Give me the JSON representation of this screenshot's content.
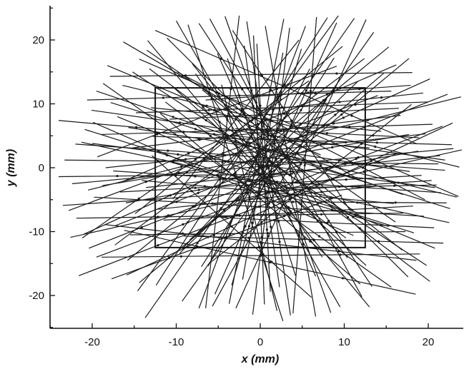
{
  "chart_data": {
    "type": "scatter",
    "title": "",
    "xlabel": "x (mm)",
    "ylabel": "y (mm)",
    "xlim": [
      -25,
      25
    ],
    "ylim": [
      -25,
      25
    ],
    "xticks": [
      -20,
      -10,
      0,
      10,
      20
    ],
    "yticks": [
      -20,
      -10,
      0,
      10,
      20
    ],
    "tick_labels_x": [
      "-20",
      "-10",
      "0",
      "10",
      "20"
    ],
    "tick_labels_y": [
      "-20",
      "-10",
      "0",
      "10",
      "20"
    ],
    "grid": false,
    "legend": "none",
    "frame_rect": {
      "x0": -12.5,
      "x1": 12.5,
      "y0": -12.5,
      "y1": 12.5
    },
    "line_color": "#1a1a1a",
    "tracks": [
      [
        [
          -24.0,
          7.4
        ],
        [
          13.0,
          3.1
        ]
      ],
      [
        [
          -23.5,
          -5.9
        ],
        [
          20.4,
          -2.0
        ]
      ],
      [
        [
          -22.6,
          -10.9
        ],
        [
          24.0,
          2.8
        ]
      ],
      [
        [
          -21.6,
          -16.9
        ],
        [
          16.1,
          2.1
        ]
      ],
      [
        [
          -22.0,
          3.7
        ],
        [
          22.0,
          -0.4
        ]
      ],
      [
        [
          -14.4,
          17.0
        ],
        [
          23.6,
          -4.5
        ]
      ],
      [
        [
          -20.5,
          -3.5
        ],
        [
          23.9,
          11.1
        ]
      ],
      [
        [
          -22.8,
          -6.7
        ],
        [
          14.0,
          11.3
        ]
      ],
      [
        [
          -19.4,
          1.7
        ],
        [
          9.1,
          15.9
        ]
      ],
      [
        [
          -21.2,
          -11.0
        ],
        [
          5.8,
          13.6
        ]
      ],
      [
        [
          -13.5,
          18.4
        ],
        [
          16.1,
          -8.5
        ]
      ],
      [
        [
          -18.8,
          -2.8
        ],
        [
          17.7,
          5.2
        ]
      ],
      [
        [
          -19.9,
          7.1
        ],
        [
          11.1,
          -10.6
        ]
      ],
      [
        [
          -17.3,
          -12.1
        ],
        [
          12.4,
          17.1
        ]
      ],
      [
        [
          -21.3,
          4.0
        ],
        [
          22.5,
          -8.6
        ]
      ],
      [
        [
          -18.5,
          -8.9
        ],
        [
          18.6,
          -14.5
        ]
      ],
      [
        [
          -16.4,
          12.9
        ],
        [
          23.7,
          0.1
        ]
      ],
      [
        [
          -19.8,
          -4.6
        ],
        [
          19.5,
          -7.6
        ]
      ],
      [
        [
          -15.9,
          -16.8
        ],
        [
          22.9,
          7.0
        ]
      ],
      [
        [
          -20.1,
          9.0
        ],
        [
          22.0,
          1.2
        ]
      ],
      [
        [
          -18.4,
          0.0
        ],
        [
          19.7,
          5.3
        ]
      ],
      [
        [
          -17.0,
          8.0
        ],
        [
          20.8,
          -12.6
        ]
      ],
      [
        [
          -16.2,
          -9.8
        ],
        [
          18.5,
          -19.8
        ]
      ],
      [
        [
          -19.5,
          12.0
        ],
        [
          17.0,
          -4.2
        ]
      ],
      [
        [
          -12.5,
          21.5
        ],
        [
          18.7,
          3.7
        ]
      ],
      [
        [
          -14.6,
          -19.3
        ],
        [
          9.3,
          23.8
        ]
      ],
      [
        [
          -10.0,
          23.0
        ],
        [
          9.5,
          -21.8
        ]
      ],
      [
        [
          -7.3,
          22.6
        ],
        [
          13.3,
          -18.6
        ]
      ],
      [
        [
          -4.2,
          23.7
        ],
        [
          8.4,
          -22.7
        ]
      ],
      [
        [
          -1.6,
          22.9
        ],
        [
          3.6,
          -23.1
        ]
      ],
      [
        [
          2.8,
          23.3
        ],
        [
          -3.7,
          -21.3
        ]
      ],
      [
        [
          5.4,
          22.2
        ],
        [
          -7.3,
          -22.0
        ]
      ],
      [
        [
          8.0,
          23.5
        ],
        [
          -12.4,
          -18.4
        ]
      ],
      [
        [
          11.2,
          23.4
        ],
        [
          -13.7,
          -23.5
        ]
      ],
      [
        [
          13.5,
          21.2
        ],
        [
          -9.3,
          -20.9
        ]
      ],
      [
        [
          -8.6,
          22.4
        ],
        [
          2.7,
          -24.0
        ]
      ],
      [
        [
          -6.0,
          23.3
        ],
        [
          12.1,
          -20.2
        ]
      ],
      [
        [
          -2.5,
          23.8
        ],
        [
          -6.5,
          -22.0
        ]
      ],
      [
        [
          0.6,
          22.2
        ],
        [
          6.6,
          -23.3
        ]
      ],
      [
        [
          3.5,
          21.9
        ],
        [
          -0.9,
          -23.0
        ]
      ],
      [
        [
          6.7,
          23.6
        ],
        [
          3.9,
          -22.8
        ]
      ],
      [
        [
          9.1,
          22.7
        ],
        [
          -5.4,
          -19.8
        ]
      ],
      [
        [
          12.6,
          23.2
        ],
        [
          -2.9,
          -22.0
        ]
      ],
      [
        [
          -11.1,
          20.3
        ],
        [
          17.6,
          -17.1
        ]
      ],
      [
        [
          -13.2,
          15.5
        ],
        [
          20.2,
          -17.8
        ]
      ],
      [
        [
          15.3,
          18.9
        ],
        [
          -15.8,
          -14.5
        ]
      ],
      [
        [
          17.7,
          17.1
        ],
        [
          -14.4,
          -18.0
        ]
      ],
      [
        [
          20.2,
          13.9
        ],
        [
          -21.0,
          -10.4
        ]
      ],
      [
        [
          22.3,
          11.5
        ],
        [
          -17.3,
          -9.1
        ]
      ],
      [
        [
          21.7,
          6.5
        ],
        [
          -19.5,
          -14.0
        ]
      ],
      [
        [
          23.0,
          3.0
        ],
        [
          -22.4,
          -2.5
        ]
      ],
      [
        [
          20.8,
          -3.1
        ],
        [
          -20.0,
          3.8
        ]
      ],
      [
        [
          22.6,
          -6.4
        ],
        [
          -17.8,
          10.2
        ]
      ],
      [
        [
          18.3,
          -10.2
        ],
        [
          -20.9,
          6.0
        ]
      ],
      [
        [
          19.8,
          -15.3
        ],
        [
          -15.2,
          15.0
        ]
      ],
      [
        [
          15.6,
          -18.7
        ],
        [
          -18.7,
          13.2
        ]
      ],
      [
        [
          13.0,
          -21.8
        ],
        [
          -13.4,
          19.9
        ]
      ],
      [
        [
          16.2,
          16.1
        ],
        [
          -16.8,
          -2.4
        ]
      ],
      [
        [
          -0.8,
          20.7
        ],
        [
          0.5,
          -21.4
        ]
      ],
      [
        [
          -15.7,
          6.3
        ],
        [
          17.8,
          -0.6
        ]
      ],
      [
        [
          -17.5,
          -0.5
        ],
        [
          21.5,
          -3.9
        ]
      ],
      [
        [
          -16.0,
          -5.5
        ],
        [
          18.8,
          2.6
        ]
      ],
      [
        [
          -15.2,
          3.1
        ],
        [
          16.7,
          8.2
        ]
      ],
      [
        [
          -14.1,
          -2.0
        ],
        [
          15.9,
          -5.6
        ]
      ],
      [
        [
          -13.0,
          9.4
        ],
        [
          14.4,
          5.7
        ]
      ],
      [
        [
          -12.2,
          -6.5
        ],
        [
          13.8,
          -2.9
        ]
      ],
      [
        [
          -11.7,
          1.3
        ],
        [
          15.3,
          -9.2
        ]
      ],
      [
        [
          -10.5,
          12.8
        ],
        [
          12.6,
          -15.3
        ]
      ],
      [
        [
          -9.6,
          -13.4
        ],
        [
          11.6,
          13.5
        ]
      ],
      [
        [
          -8.1,
          16.3
        ],
        [
          10.4,
          -14.1
        ]
      ],
      [
        [
          -7.0,
          -15.5
        ],
        [
          8.8,
          17.2
        ]
      ],
      [
        [
          -5.1,
          17.9
        ],
        [
          6.6,
          -17.0
        ]
      ],
      [
        [
          -3.4,
          -18.4
        ],
        [
          4.9,
          18.6
        ]
      ],
      [
        [
          -1.9,
          19.1
        ],
        [
          2.3,
          -18.7
        ]
      ],
      [
        [
          1.2,
          -19.4
        ],
        [
          -0.4,
          19.4
        ]
      ],
      [
        [
          2.7,
          18.0
        ],
        [
          -2.1,
          -17.5
        ]
      ],
      [
        [
          4.2,
          -16.9
        ],
        [
          -3.9,
          17.1
        ]
      ],
      [
        [
          5.9,
          15.5
        ],
        [
          -6.2,
          -15.4
        ]
      ],
      [
        [
          7.4,
          -14.0
        ],
        [
          -7.7,
          14.7
        ]
      ],
      [
        [
          8.9,
          12.4
        ],
        [
          -9.2,
          -12.6
        ]
      ],
      [
        [
          10.2,
          -11.0
        ],
        [
          -11.3,
          10.3
        ]
      ],
      [
        [
          -20.6,
          10.6
        ],
        [
          15.6,
          12.0
        ]
      ],
      [
        [
          -21.9,
          -7.9
        ],
        [
          17.0,
          -7.1
        ]
      ],
      [
        [
          -17.9,
          14.3
        ],
        [
          18.1,
          14.9
        ]
      ],
      [
        [
          -18.9,
          -14.0
        ],
        [
          19.0,
          -13.5
        ]
      ],
      [
        [
          -23.3,
          1.2
        ],
        [
          21.2,
          0.6
        ]
      ],
      [
        [
          -19.0,
          5.2
        ],
        [
          20.5,
          6.8
        ]
      ],
      [
        [
          -15.5,
          -10.5
        ],
        [
          17.3,
          -10.0
        ]
      ],
      [
        [
          -14.8,
          8.6
        ],
        [
          20.0,
          10.3
        ]
      ],
      [
        [
          -16.7,
          -3.8
        ],
        [
          19.2,
          -1.2
        ]
      ],
      [
        [
          -12.8,
          4.9
        ],
        [
          22.8,
          3.6
        ]
      ],
      [
        [
          -11.5,
          -8.2
        ],
        [
          18.2,
          -6.0
        ]
      ],
      [
        [
          -10.8,
          7.6
        ],
        [
          16.5,
          9.3
        ]
      ],
      [
        [
          -9.1,
          -10.7
        ],
        [
          21.8,
          -11.8
        ]
      ],
      [
        [
          -6.5,
          10.6
        ],
        [
          17.9,
          12.9
        ]
      ],
      [
        [
          -4.7,
          -7.8
        ],
        [
          20.7,
          -9.4
        ]
      ],
      [
        [
          -3.0,
          6.1
        ],
        [
          18.9,
          4.7
        ]
      ],
      [
        [
          -2.2,
          -5.3
        ],
        [
          22.2,
          -5.5
        ]
      ],
      [
        [
          -0.5,
          8.9
        ],
        [
          19.4,
          11.7
        ]
      ],
      [
        [
          0.9,
          -3.2
        ],
        [
          21.0,
          -2.7
        ]
      ],
      [
        [
          -24.0,
          -1.4
        ],
        [
          3.9,
          -1.0
        ]
      ],
      [
        [
          -20.4,
          -12.6
        ],
        [
          4.8,
          0.5
        ]
      ],
      [
        [
          -18.2,
          16.0
        ],
        [
          7.2,
          2.0
        ]
      ],
      [
        [
          -17.7,
          -17.4
        ],
        [
          9.7,
          -4.3
        ]
      ],
      [
        [
          -16.3,
          19.7
        ],
        [
          11.8,
          -1.9
        ]
      ],
      [
        [
          -5.7,
          -21.7
        ],
        [
          7.8,
          10.5
        ]
      ],
      [
        [
          -3.3,
          21.5
        ],
        [
          10.7,
          -6.7
        ]
      ],
      [
        [
          2.0,
          -22.4
        ],
        [
          -4.6,
          13.0
        ]
      ],
      [
        [
          4.6,
          20.0
        ],
        [
          -10.4,
          -4.9
        ]
      ],
      [
        [
          6.1,
          -20.3
        ],
        [
          -12.9,
          1.9
        ]
      ],
      [
        [
          9.8,
          19.0
        ],
        [
          -14.9,
          -7.2
        ]
      ],
      [
        [
          11.9,
          -18.2
        ],
        [
          -11.9,
          8.5
        ]
      ],
      [
        [
          14.7,
          14.8
        ],
        [
          -8.4,
          -11.3
        ]
      ],
      [
        [
          16.9,
          -12.9
        ],
        [
          -6.9,
          12.2
        ]
      ],
      [
        [
          18.0,
          9.9
        ],
        [
          -5.8,
          -14.7
        ]
      ],
      [
        [
          19.6,
          -5.0
        ],
        [
          -9.9,
          15.0
        ]
      ],
      [
        [
          21.4,
          1.9
        ],
        [
          -13.6,
          -3.1
        ]
      ],
      [
        [
          23.4,
          -4.6
        ],
        [
          -4.4,
          4.4
        ]
      ]
    ]
  }
}
